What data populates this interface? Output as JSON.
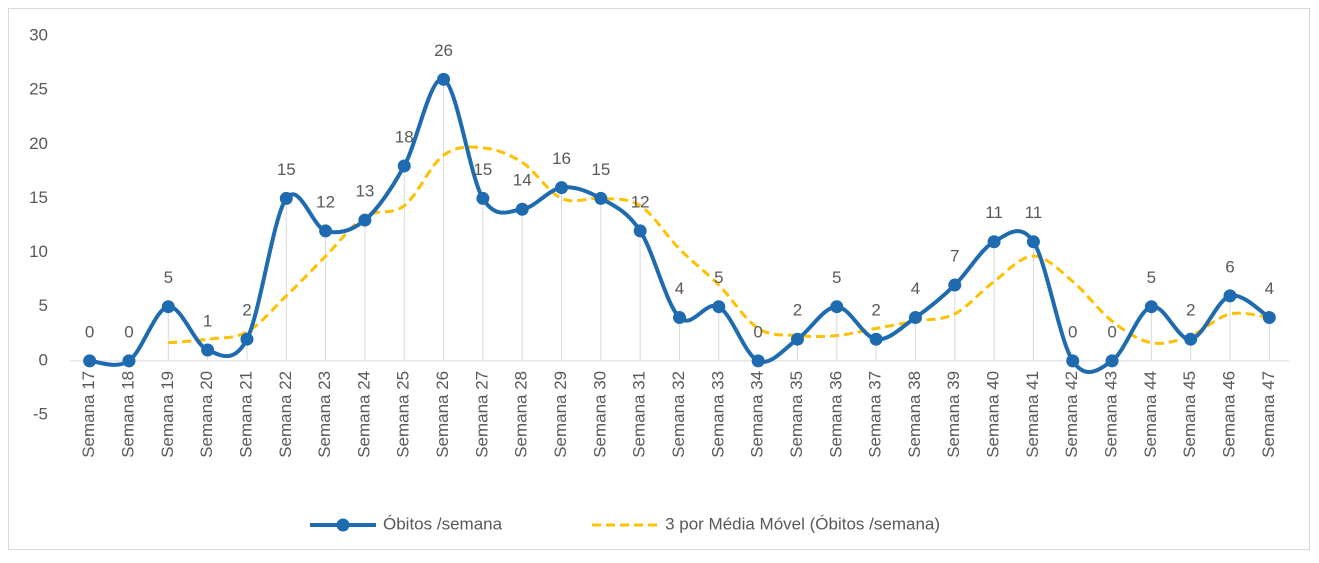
{
  "chart_data": {
    "type": "line",
    "categories": [
      "Semana 17",
      "Semana 18",
      "Semana 19",
      "Semana 20",
      "Semana 21",
      "Semana 22",
      "Semana 23",
      "Semana 24",
      "Semana 25",
      "Semana 26",
      "Semana 27",
      "Semana 28",
      "Semana 29",
      "Semana 30",
      "Semana 31",
      "Semana 32",
      "Semana 33",
      "Semana 34",
      "Semana 35",
      "Semana 36",
      "Semana 37",
      "Semana 38",
      "Semana 39",
      "Semana 40",
      "Semana 41",
      "Semana 42",
      "Semana 43",
      "Semana 44",
      "Semana 45",
      "Semana 46",
      "Semana 47"
    ],
    "series": [
      {
        "name": "Óbitos /semana",
        "color": "#1f6bb0",
        "values": [
          0,
          0,
          5,
          1,
          2,
          15,
          12,
          13,
          18,
          26,
          15,
          14,
          16,
          15,
          12,
          4,
          5,
          0,
          2,
          5,
          2,
          4,
          7,
          11,
          11,
          0,
          0,
          5,
          2,
          6,
          4
        ]
      },
      {
        "name": "3 por Média Móvel (Óbitos /semana)",
        "color": "#ffc000",
        "dashed": true,
        "values": [
          null,
          null,
          1.67,
          2,
          2.67,
          6,
          9.67,
          13.33,
          14.33,
          19,
          19.67,
          18.33,
          15,
          15,
          14.33,
          10.33,
          7,
          3,
          2.33,
          2.33,
          3,
          3.67,
          4.33,
          7.33,
          9.67,
          7.33,
          3.67,
          1.67,
          2.33,
          4.33,
          4
        ]
      }
    ],
    "ylim": [
      -5,
      30
    ],
    "yticks": [
      -5,
      0,
      5,
      10,
      15,
      20,
      25,
      30
    ],
    "grid": false,
    "legend": "bottom"
  }
}
